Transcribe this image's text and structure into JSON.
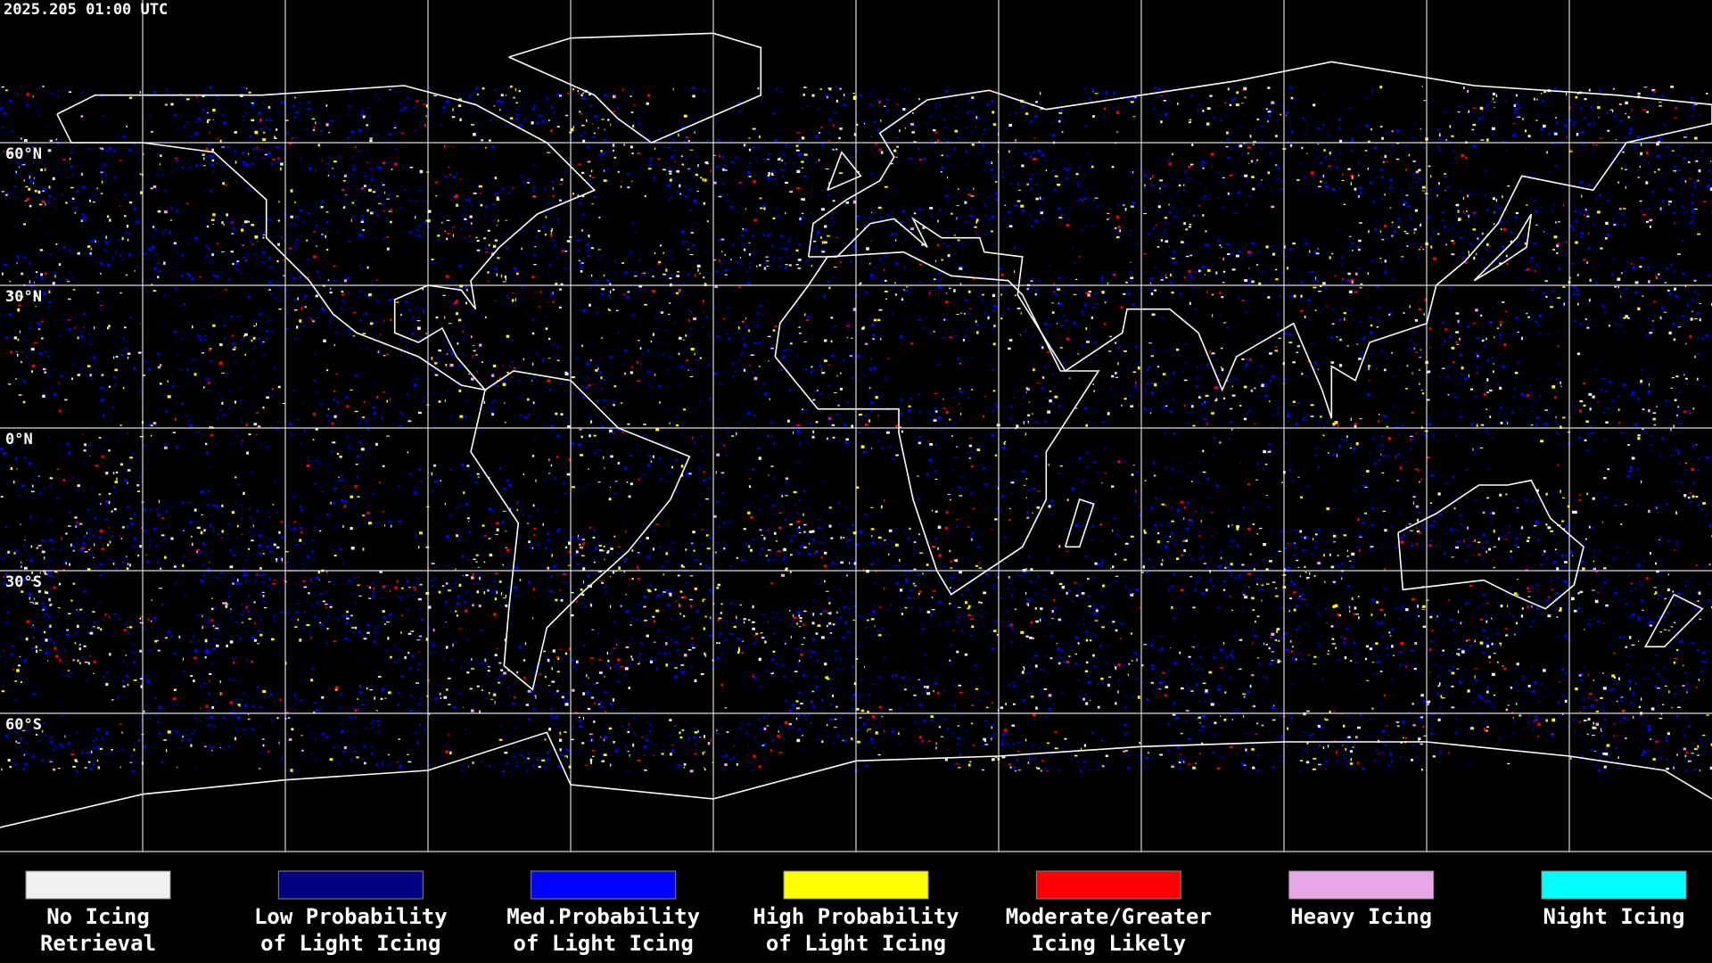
{
  "timestamp": "2025.205 01:00 UTC",
  "lat_labels": [
    "60°N",
    "30°N",
    "0°N",
    "30°S",
    "60°S"
  ],
  "legend": [
    {
      "lines": [
        "No Icing",
        "Retrieval"
      ],
      "color": "#f0f0f0"
    },
    {
      "lines": [
        "Low Probability",
        "of Light Icing"
      ],
      "color": "#000080"
    },
    {
      "lines": [
        "Med.Probability",
        "of Light Icing"
      ],
      "color": "#0000ff"
    },
    {
      "lines": [
        "High Probability",
        "of Light Icing"
      ],
      "color": "#ffff00"
    },
    {
      "lines": [
        "Moderate/Greater",
        "Icing Likely"
      ],
      "color": "#ff0000"
    },
    {
      "lines": [
        "Heavy Icing"
      ],
      "color": "#e8a8e8"
    },
    {
      "lines": [
        "Night Icing"
      ],
      "color": "#00ffff"
    }
  ]
}
